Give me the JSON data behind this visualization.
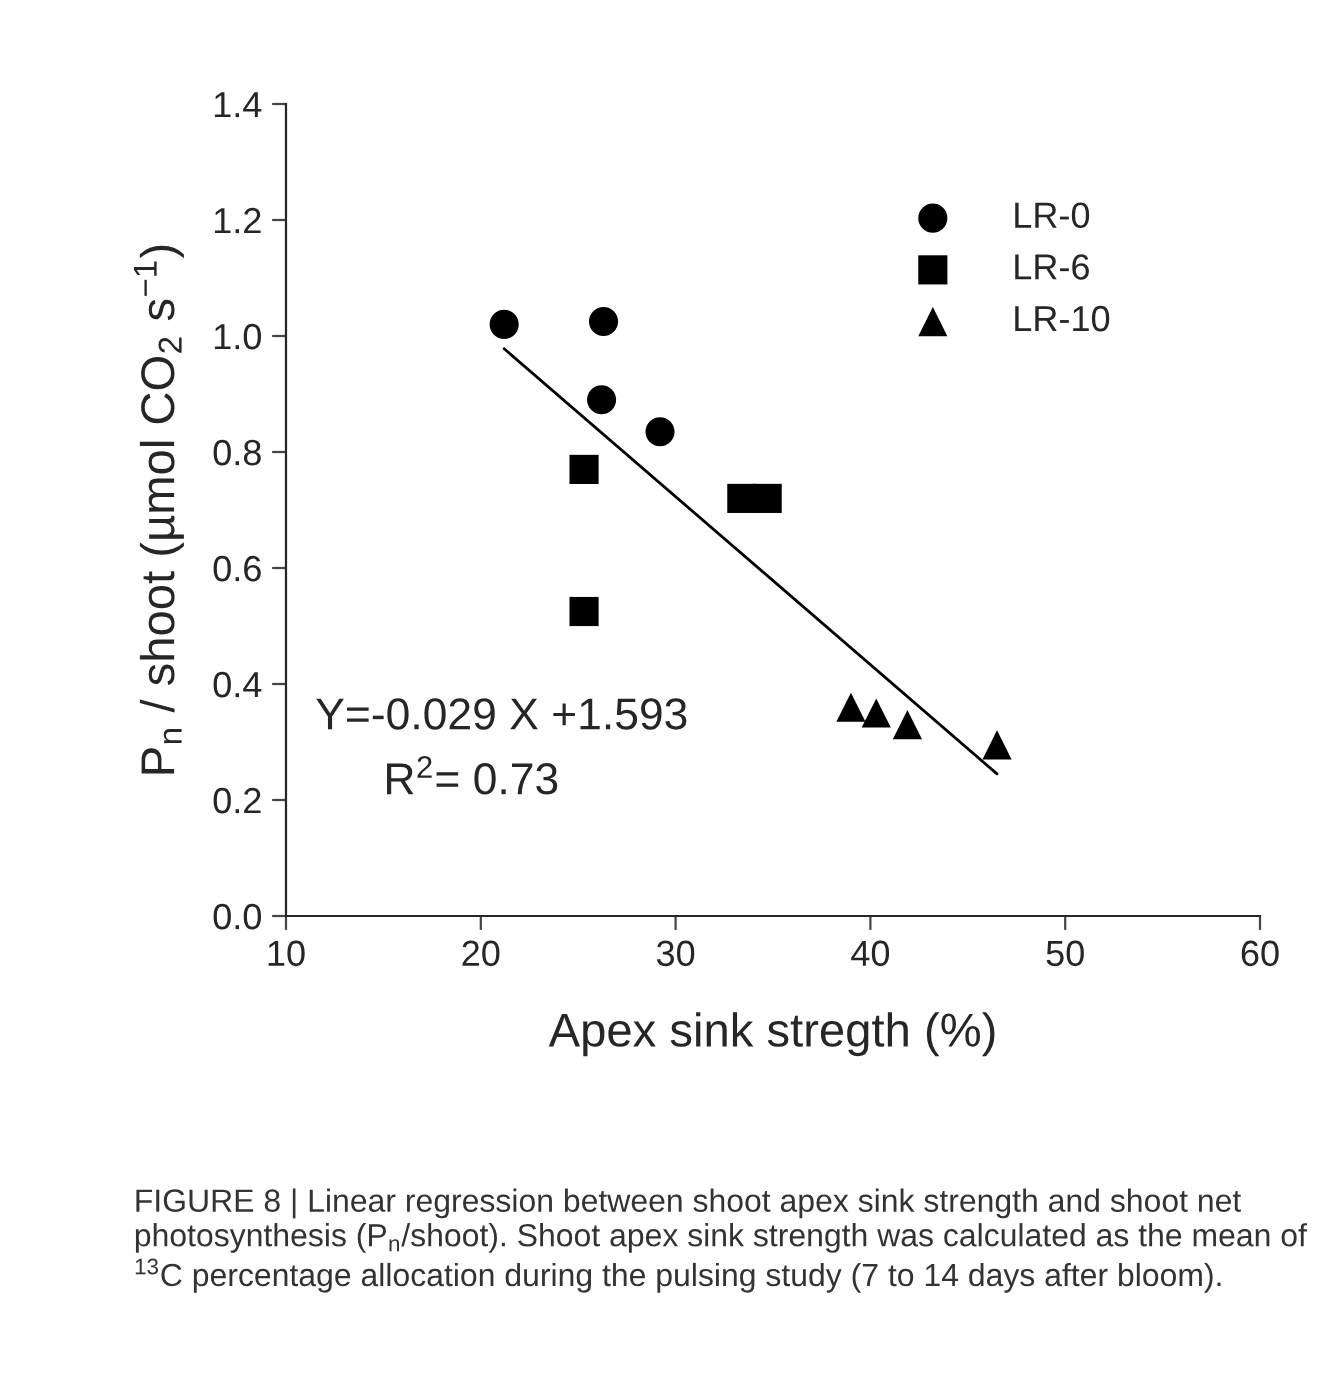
{
  "chart_data": {
    "type": "scatter",
    "xlabel": "Apex sink stregth (%)",
    "ylabel": "P$_{n}$ / shoot (µmol CO$_{2}$ s$^{−1}$)",
    "xlim": [
      10,
      60
    ],
    "xticks": [
      10,
      20,
      30,
      40,
      50,
      60
    ],
    "ylim": [
      0.0,
      1.4
    ],
    "yticks": [
      {
        "value": 0.0,
        "label": "0.0"
      },
      {
        "value": 0.2,
        "label": "0.2"
      },
      {
        "value": 0.4,
        "label": "0.4"
      },
      {
        "value": 0.6,
        "label": "0.6"
      },
      {
        "value": 0.8,
        "label": "0.8"
      },
      {
        "value": 1.0,
        "label": "1.0"
      },
      {
        "value": 1.2,
        "label": "1.2"
      },
      {
        "value": 1.4,
        "label": "1.4"
      }
    ],
    "legend": "top right",
    "grid": false,
    "series": [
      {
        "name": "LR-0",
        "color": "#000000",
        "marker": "circle",
        "x": [
          21.2,
          26.3,
          26.2,
          29.2
        ],
        "values": [
          1.02,
          1.025,
          0.89,
          0.835
        ]
      },
      {
        "name": "LR-6",
        "color": "#000000",
        "marker": "square",
        "x": [
          25.3,
          25.3,
          33.4,
          34.7
        ],
        "values": [
          0.77,
          0.525,
          0.72,
          0.72
        ]
      },
      {
        "name": "LR-10",
        "color": "#000000",
        "marker": "triangle",
        "x": [
          39.0,
          40.3,
          41.9,
          46.5
        ],
        "values": [
          0.36,
          0.35,
          0.33,
          0.295
        ]
      },
      {
        "type": "line",
        "color": "#000000",
        "marker": "none",
        "line_style": "solid",
        "x": [
          21.2,
          46.5
        ],
        "values": [
          0.978,
          0.245
        ]
      }
    ],
    "annotations": [
      "Y=-0.029 X +1.593",
      "R$^{2}$= 0.73",
      "FIGURE 8 | Linear regression between shoot apex sink strength and shoot net photosynthesis (P$_{n}$/shoot). Shoot apex sink strength was calculated as the mean of $^{13}$C percentage allocation during the pulsing study (7 to 14 days after bloom)."
    ]
  }
}
